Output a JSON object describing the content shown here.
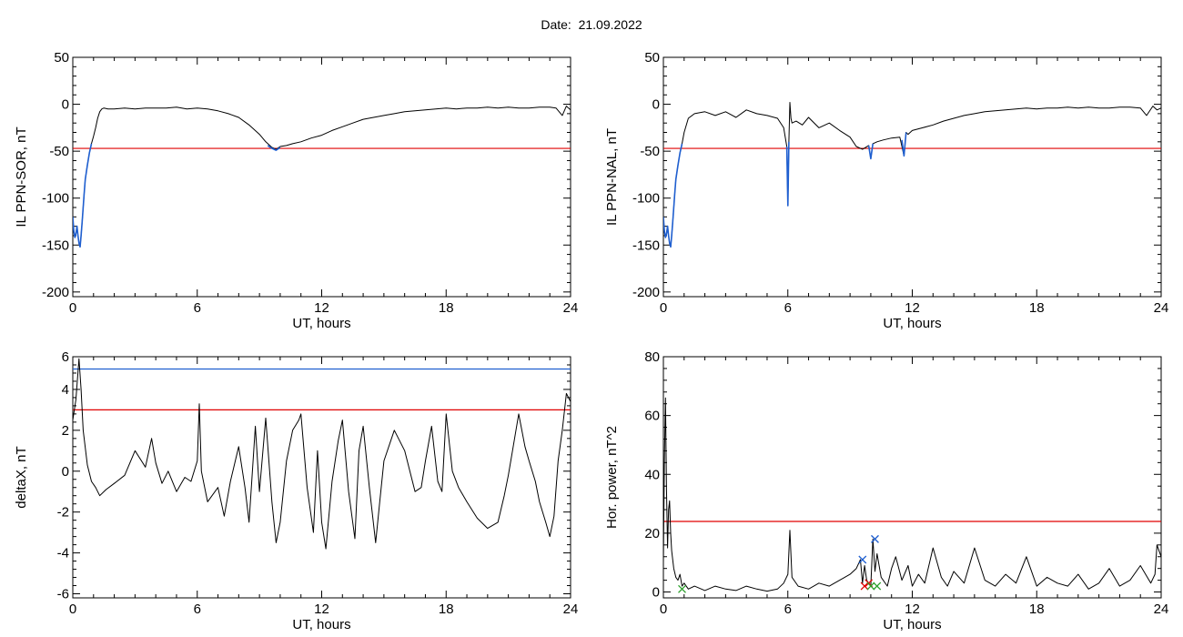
{
  "page": {
    "title": "Date:  21.09.2022"
  },
  "chart_data": [
    {
      "id": "sor",
      "type": "line",
      "ylabel": "IL PPN-SOR, nT",
      "xlabel": "UT, hours",
      "xlim": [
        0,
        24
      ],
      "ylim": [
        -205,
        50
      ],
      "xticks": [
        0,
        6,
        12,
        18,
        24
      ],
      "yticks": [
        50,
        0,
        -50,
        -100,
        -150,
        -200
      ],
      "threshold": {
        "value": -47,
        "color": "#e00000"
      },
      "series": [
        {
          "color": "#000000",
          "x": [
            0.0,
            0.05,
            0.1,
            0.15,
            0.2,
            0.25,
            0.3,
            0.35,
            0.4,
            0.45,
            0.5,
            0.55,
            0.6,
            0.7,
            0.8,
            0.9,
            1.0,
            1.1,
            1.2,
            1.3,
            1.4,
            1.5,
            1.7,
            2.0,
            2.5,
            3.0,
            3.5,
            4.0,
            4.5,
            5.0,
            5.5,
            6.0,
            6.5,
            7.0,
            7.5,
            8.0,
            8.5,
            9.0,
            9.3,
            9.6,
            9.8,
            10.0,
            10.3,
            10.6,
            11.0,
            11.5,
            12.0,
            12.5,
            13.0,
            13.5,
            14.0,
            14.5,
            15.0,
            15.5,
            16.0,
            16.5,
            17.0,
            17.5,
            18.0,
            18.5,
            19.0,
            19.5,
            20.0,
            20.5,
            21.0,
            21.5,
            22.0,
            22.5,
            23.0,
            23.3,
            23.6,
            23.8,
            24.0
          ],
          "y": [
            -120,
            -135,
            -142,
            -138,
            -130,
            -140,
            -148,
            -152,
            -140,
            -125,
            -110,
            -95,
            -80,
            -65,
            -52,
            -42,
            -34,
            -25,
            -15,
            -8,
            -5,
            -4,
            -5,
            -5,
            -4,
            -5,
            -4,
            -4,
            -4,
            -3,
            -5,
            -4,
            -5,
            -7,
            -10,
            -14,
            -22,
            -32,
            -40,
            -46,
            -48,
            -45,
            -44,
            -42,
            -40,
            -36,
            -33,
            -28,
            -24,
            -20,
            -16,
            -14,
            -12,
            -10,
            -8,
            -7,
            -6,
            -5,
            -4,
            -5,
            -4,
            -4,
            -3,
            -4,
            -3,
            -4,
            -4,
            -3,
            -3,
            -4,
            -12,
            -2,
            -6
          ]
        },
        {
          "color": "#1f5fd0",
          "x": [
            0.0,
            0.05,
            0.1,
            0.15,
            0.2,
            0.25,
            0.3,
            0.35,
            0.4,
            0.45,
            0.5,
            0.55,
            0.6,
            0.7,
            0.8,
            0.9
          ],
          "y": [
            -120,
            -135,
            -142,
            -138,
            -130,
            -140,
            -148,
            -152,
            -140,
            -125,
            -110,
            -95,
            -80,
            -65,
            -52,
            -42
          ]
        },
        {
          "color": "#1f5fd0",
          "x": [
            9.4,
            9.6,
            9.8,
            10.0
          ],
          "y": [
            -44,
            -47,
            -49,
            -46
          ]
        }
      ]
    },
    {
      "id": "nal",
      "type": "line",
      "ylabel": "IL PPN-NAL, nT",
      "xlabel": "UT, hours",
      "xlim": [
        0,
        24
      ],
      "ylim": [
        -205,
        50
      ],
      "xticks": [
        0,
        6,
        12,
        18,
        24
      ],
      "yticks": [
        50,
        0,
        -50,
        -100,
        -150,
        -200
      ],
      "threshold": {
        "value": -47,
        "color": "#e00000"
      },
      "series": [
        {
          "color": "#000000",
          "x": [
            0.0,
            0.05,
            0.1,
            0.15,
            0.2,
            0.25,
            0.3,
            0.35,
            0.4,
            0.45,
            0.5,
            0.55,
            0.6,
            0.7,
            0.8,
            0.9,
            1.0,
            1.2,
            1.5,
            2.0,
            2.5,
            3.0,
            3.5,
            4.0,
            4.5,
            5.0,
            5.5,
            5.8,
            5.95,
            6.0,
            6.05,
            6.1,
            6.15,
            6.2,
            6.4,
            6.7,
            7.0,
            7.5,
            8.0,
            8.5,
            9.0,
            9.3,
            9.6,
            9.9,
            10.0,
            10.1,
            10.3,
            10.6,
            11.0,
            11.4,
            11.6,
            11.7,
            11.8,
            12.0,
            12.5,
            13.0,
            13.5,
            14.0,
            14.5,
            15.0,
            15.5,
            16.0,
            16.5,
            17.0,
            17.5,
            18.0,
            18.5,
            19.0,
            19.5,
            20.0,
            20.5,
            21.0,
            21.5,
            22.0,
            22.5,
            23.0,
            23.3,
            23.6,
            23.8,
            24.0
          ],
          "y": [
            -120,
            -135,
            -142,
            -138,
            -130,
            -140,
            -148,
            -152,
            -140,
            -125,
            -110,
            -95,
            -80,
            -65,
            -52,
            -42,
            -30,
            -15,
            -10,
            -8,
            -12,
            -8,
            -14,
            -6,
            -10,
            -12,
            -15,
            -25,
            -45,
            -108,
            -40,
            2,
            -15,
            -20,
            -18,
            -22,
            -14,
            -25,
            -20,
            -28,
            -35,
            -45,
            -48,
            -44,
            -58,
            -42,
            -40,
            -38,
            -36,
            -35,
            -55,
            -30,
            -32,
            -28,
            -25,
            -22,
            -18,
            -15,
            -12,
            -10,
            -8,
            -7,
            -6,
            -5,
            -4,
            -5,
            -4,
            -4,
            -3,
            -4,
            -3,
            -4,
            -4,
            -3,
            -3,
            -4,
            -12,
            -2,
            -6,
            -4
          ]
        },
        {
          "color": "#1f5fd0",
          "x": [
            0.0,
            0.05,
            0.1,
            0.15,
            0.2,
            0.25,
            0.3,
            0.35,
            0.4,
            0.45,
            0.5,
            0.55,
            0.6,
            0.7,
            0.8,
            0.9
          ],
          "y": [
            -120,
            -135,
            -142,
            -138,
            -130,
            -140,
            -148,
            -152,
            -140,
            -125,
            -110,
            -95,
            -80,
            -65,
            -52,
            -42
          ]
        },
        {
          "color": "#1f5fd0",
          "x": [
            5.95,
            6.0,
            6.05
          ],
          "y": [
            -45,
            -108,
            -40
          ]
        },
        {
          "color": "#1f5fd0",
          "x": [
            9.9,
            10.0,
            10.1
          ],
          "y": [
            -44,
            -58,
            -42
          ]
        },
        {
          "color": "#1f5fd0",
          "x": [
            11.5,
            11.6,
            11.7
          ],
          "y": [
            -38,
            -55,
            -30
          ]
        }
      ]
    },
    {
      "id": "deltax",
      "type": "line",
      "ylabel": "deltaX, nT",
      "xlabel": "UT, hours",
      "xlim": [
        0,
        24
      ],
      "ylim": [
        -6.2,
        5.6
      ],
      "xticks": [
        0,
        6,
        12,
        18,
        24
      ],
      "yticks": [
        6,
        4,
        2,
        0,
        -2,
        -4,
        -6
      ],
      "threshold": {
        "value": 3,
        "color": "#e00000"
      },
      "threshold2": {
        "value": 5,
        "color": "#1f5fd0"
      },
      "series": [
        {
          "color": "#000000",
          "x": [
            0.0,
            0.15,
            0.3,
            0.4,
            0.5,
            0.7,
            0.9,
            1.1,
            1.3,
            1.6,
            2.0,
            2.5,
            3.0,
            3.5,
            3.8,
            4.0,
            4.3,
            4.6,
            5.0,
            5.4,
            5.7,
            6.0,
            6.1,
            6.2,
            6.5,
            7.0,
            7.3,
            7.6,
            8.0,
            8.3,
            8.5,
            8.8,
            9.0,
            9.3,
            9.6,
            9.8,
            10.0,
            10.3,
            10.6,
            10.9,
            11.0,
            11.3,
            11.6,
            11.8,
            12.0,
            12.2,
            12.5,
            12.8,
            13.0,
            13.3,
            13.6,
            13.8,
            14.0,
            14.3,
            14.6,
            14.8,
            15.0,
            15.5,
            16.0,
            16.5,
            16.8,
            17.0,
            17.3,
            17.6,
            17.8,
            18.0,
            18.3,
            18.6,
            19.0,
            19.5,
            20.0,
            20.5,
            20.8,
            21.0,
            21.2,
            21.5,
            21.8,
            22.0,
            22.3,
            22.5,
            22.8,
            23.0,
            23.2,
            23.4,
            23.6,
            23.8,
            24.0
          ],
          "y": [
            2.5,
            3.5,
            5.5,
            4.0,
            2.0,
            0.3,
            -0.5,
            -0.8,
            -1.2,
            -0.9,
            -0.6,
            -0.2,
            1.0,
            0.2,
            1.6,
            0.4,
            -0.6,
            0.0,
            -1.0,
            -0.3,
            -0.5,
            0.5,
            3.3,
            0.0,
            -1.5,
            -0.8,
            -2.2,
            -0.5,
            1.2,
            -0.8,
            -2.5,
            2.2,
            -1.0,
            2.6,
            -1.5,
            -3.5,
            -2.5,
            0.5,
            2.0,
            2.5,
            2.8,
            -0.8,
            -3.0,
            1.0,
            -2.5,
            -3.8,
            -0.5,
            1.5,
            2.5,
            -1.0,
            -3.3,
            1.0,
            2.2,
            -0.8,
            -3.5,
            -1.5,
            0.5,
            2.0,
            1.0,
            -1.0,
            -0.8,
            0.5,
            2.2,
            -0.5,
            -1.0,
            2.8,
            0.0,
            -0.8,
            -1.5,
            -2.3,
            -2.8,
            -2.5,
            -1.2,
            -0.2,
            1.0,
            2.8,
            1.2,
            0.5,
            -0.5,
            -1.5,
            -2.5,
            -3.2,
            -2.2,
            0.5,
            2.0,
            3.8,
            3.4
          ]
        }
      ]
    },
    {
      "id": "hor",
      "type": "line",
      "ylabel": "Hor. power, nT^2",
      "xlabel": "UT, hours",
      "xlim": [
        0,
        24
      ],
      "ylim": [
        -2,
        80
      ],
      "xticks": [
        0,
        6,
        12,
        18,
        24
      ],
      "yticks": [
        80,
        60,
        40,
        20,
        0
      ],
      "threshold": {
        "value": 24,
        "color": "#e00000"
      },
      "markers": [
        {
          "x": 10.2,
          "y": 18,
          "color": "#1f5fd0"
        },
        {
          "x": 9.6,
          "y": 11,
          "color": "#1f5fd0"
        },
        {
          "x": 9.7,
          "y": 2,
          "color": "#e00000"
        },
        {
          "x": 9.9,
          "y": 3,
          "color": "#e00000"
        },
        {
          "x": 10.0,
          "y": 2,
          "color": "#2aa02a"
        },
        {
          "x": 10.3,
          "y": 2,
          "color": "#2aa02a"
        },
        {
          "x": 0.9,
          "y": 1,
          "color": "#2aa02a"
        }
      ],
      "series": [
        {
          "color": "#000000",
          "x": [
            0.0,
            0.05,
            0.1,
            0.15,
            0.2,
            0.25,
            0.3,
            0.35,
            0.4,
            0.5,
            0.6,
            0.7,
            0.8,
            0.9,
            1.0,
            1.2,
            1.5,
            2.0,
            2.5,
            3.0,
            3.5,
            4.0,
            4.5,
            5.0,
            5.5,
            5.8,
            6.0,
            6.1,
            6.2,
            6.5,
            7.0,
            7.5,
            8.0,
            8.5,
            9.0,
            9.3,
            9.5,
            9.6,
            9.7,
            9.8,
            10.0,
            10.1,
            10.2,
            10.3,
            10.5,
            10.8,
            11.0,
            11.2,
            11.5,
            11.8,
            12.0,
            12.3,
            12.6,
            13.0,
            13.4,
            13.7,
            14.0,
            14.5,
            15.0,
            15.5,
            16.0,
            16.5,
            17.0,
            17.5,
            18.0,
            18.5,
            19.0,
            19.5,
            20.0,
            20.5,
            21.0,
            21.5,
            22.0,
            22.5,
            23.0,
            23.5,
            23.7,
            23.8,
            24.0
          ],
          "y": [
            10,
            45,
            66,
            35,
            15,
            28,
            31,
            20,
            14,
            8,
            5,
            4,
            6,
            2,
            3,
            1,
            2,
            0.5,
            2,
            1,
            0.5,
            2,
            1,
            0.3,
            1,
            3,
            6,
            21,
            5,
            2,
            1,
            3,
            2,
            4,
            6,
            8,
            11,
            3,
            9,
            4,
            2,
            18,
            7,
            13,
            5,
            2,
            8,
            12,
            4,
            9,
            2,
            6,
            3,
            15,
            5,
            2,
            7,
            3,
            15,
            4,
            2,
            6,
            3,
            12,
            2,
            5,
            3,
            2,
            6,
            1,
            3,
            8,
            2,
            4,
            9,
            3,
            6,
            16,
            12
          ]
        }
      ]
    }
  ]
}
